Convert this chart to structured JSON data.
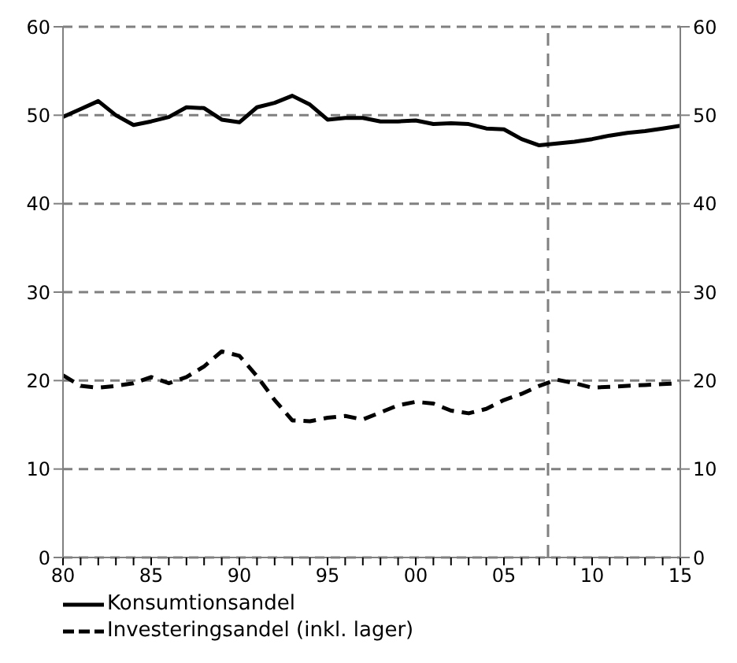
{
  "chart_data": {
    "type": "line",
    "x": [
      1980,
      1981,
      1982,
      1983,
      1984,
      1985,
      1986,
      1987,
      1988,
      1989,
      1990,
      1991,
      1992,
      1993,
      1994,
      1995,
      1996,
      1997,
      1998,
      1999,
      2000,
      2001,
      2002,
      2003,
      2004,
      2005,
      2006,
      2007,
      2008,
      2009,
      2010,
      2011,
      2012,
      2013,
      2014,
      2015
    ],
    "series": [
      {
        "name": "Konsumtionsandel",
        "color": "#000000",
        "line_style": "solid",
        "values": [
          49.8,
          50.7,
          51.6,
          50.0,
          48.9,
          49.3,
          49.8,
          50.9,
          50.8,
          49.5,
          49.2,
          50.9,
          51.4,
          52.2,
          51.2,
          49.5,
          49.7,
          49.7,
          49.3,
          49.3,
          49.4,
          49.0,
          49.1,
          49.0,
          48.5,
          48.4,
          47.3,
          46.6,
          46.8,
          47.0,
          47.3,
          47.7,
          48.0,
          48.2,
          48.5,
          48.8
        ]
      },
      {
        "name": "Investeringsandel (inkl. lager)",
        "color": "#000000",
        "line_style": "dashed",
        "values": [
          20.6,
          19.4,
          19.2,
          19.4,
          19.7,
          20.4,
          19.7,
          20.4,
          21.6,
          23.3,
          22.8,
          20.5,
          17.8,
          15.5,
          15.4,
          15.8,
          16.0,
          15.6,
          16.4,
          17.2,
          17.6,
          17.4,
          16.6,
          16.3,
          16.8,
          17.8,
          18.5,
          19.4,
          20.1,
          19.7,
          19.2,
          19.3,
          19.4,
          19.5,
          19.6,
          19.7
        ]
      }
    ],
    "xlim": [
      1980,
      2015
    ],
    "xticks": [
      {
        "value": 1980,
        "label": "80"
      },
      {
        "value": 1981,
        "label": null
      },
      {
        "value": 1982,
        "label": null
      },
      {
        "value": 1983,
        "label": null
      },
      {
        "value": 1984,
        "label": null
      },
      {
        "value": 1985,
        "label": "85"
      },
      {
        "value": 1986,
        "label": null
      },
      {
        "value": 1987,
        "label": null
      },
      {
        "value": 1988,
        "label": null
      },
      {
        "value": 1989,
        "label": null
      },
      {
        "value": 1990,
        "label": "90"
      },
      {
        "value": 1991,
        "label": null
      },
      {
        "value": 1992,
        "label": null
      },
      {
        "value": 1993,
        "label": null
      },
      {
        "value": 1994,
        "label": null
      },
      {
        "value": 1995,
        "label": "95"
      },
      {
        "value": 1996,
        "label": null
      },
      {
        "value": 1997,
        "label": null
      },
      {
        "value": 1998,
        "label": null
      },
      {
        "value": 1999,
        "label": null
      },
      {
        "value": 2000,
        "label": "00"
      },
      {
        "value": 2001,
        "label": null
      },
      {
        "value": 2002,
        "label": null
      },
      {
        "value": 2003,
        "label": null
      },
      {
        "value": 2004,
        "label": null
      },
      {
        "value": 2005,
        "label": "05"
      },
      {
        "value": 2006,
        "label": null
      },
      {
        "value": 2007,
        "label": null
      },
      {
        "value": 2008,
        "label": null
      },
      {
        "value": 2009,
        "label": null
      },
      {
        "value": 2010,
        "label": "10"
      },
      {
        "value": 2011,
        "label": null
      },
      {
        "value": 2012,
        "label": null
      },
      {
        "value": 2013,
        "label": null
      },
      {
        "value": 2014,
        "label": null
      },
      {
        "value": 2015,
        "label": "15"
      }
    ],
    "ylim": [
      0,
      60
    ],
    "yticks": [
      0,
      10,
      20,
      30,
      40,
      50,
      60
    ],
    "y2lim": [
      0,
      60
    ],
    "y2ticks": [
      0,
      10,
      20,
      30,
      40,
      50,
      60
    ],
    "ref_lines": [
      {
        "axis": "x",
        "value": 2007.5,
        "color": "#808080",
        "line_style": "dashed"
      }
    ],
    "grid": "y",
    "legend": "bottom",
    "marker": "none"
  }
}
